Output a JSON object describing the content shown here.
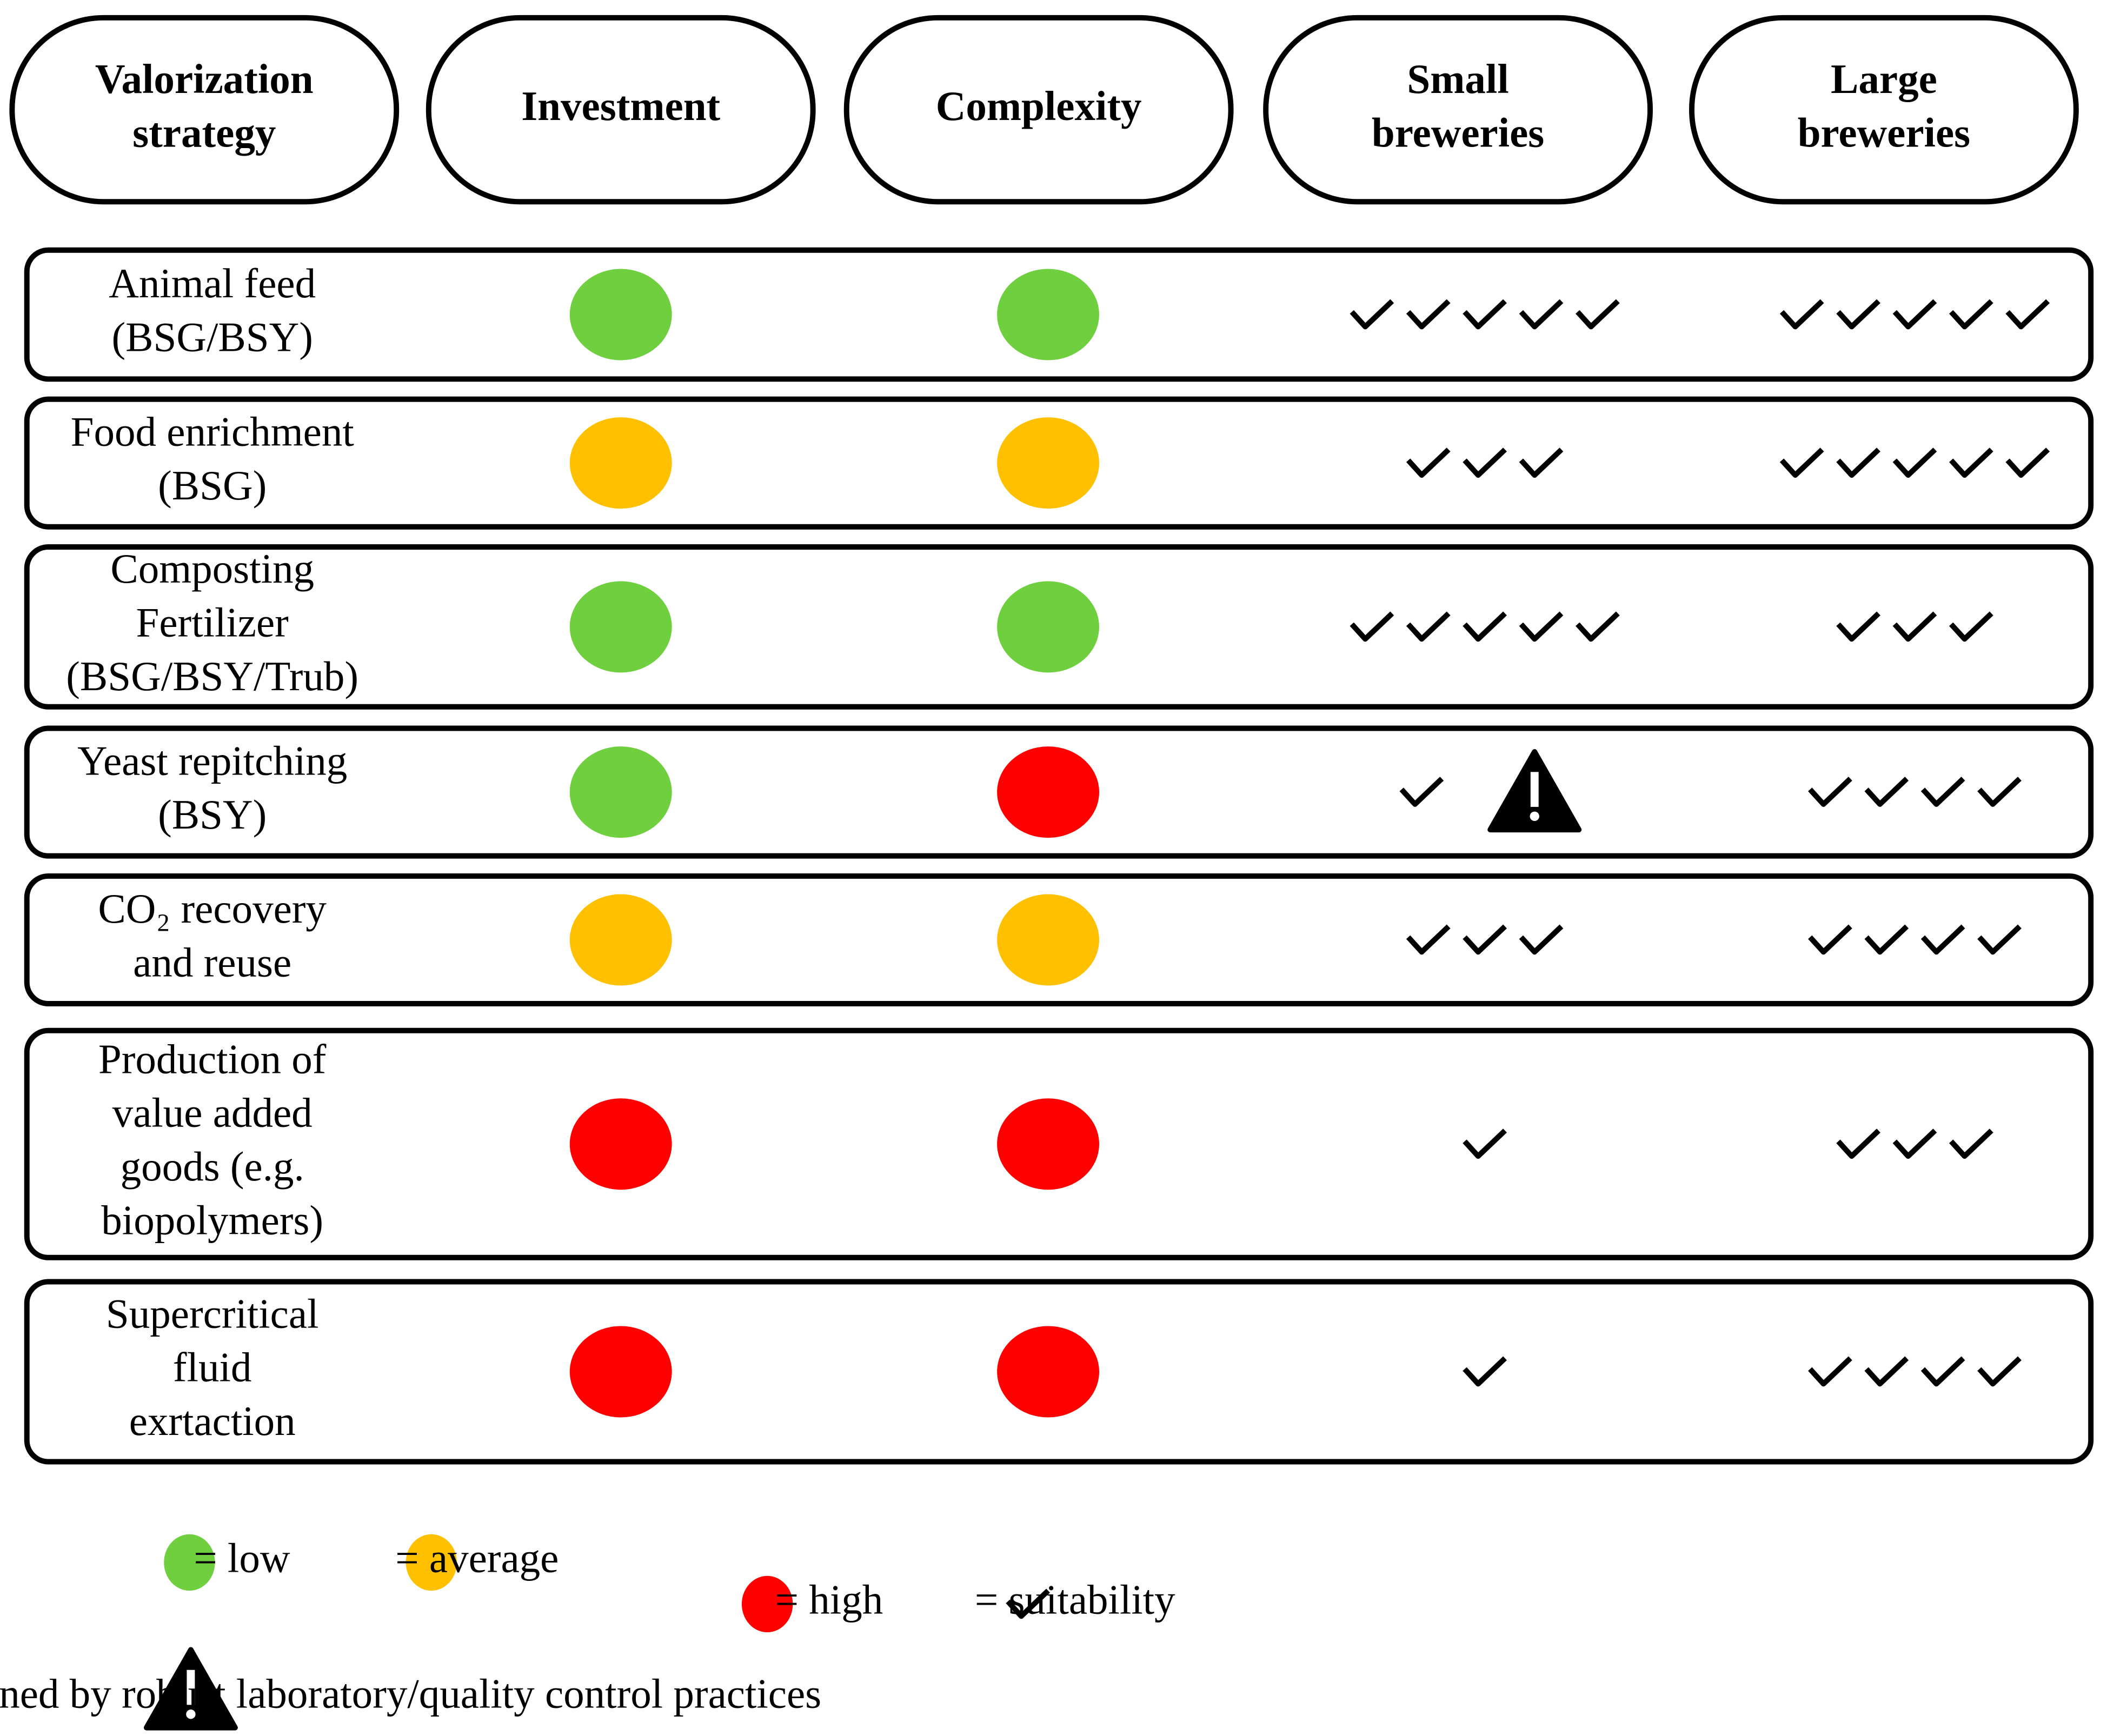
{
  "headers": [
    [
      "Valorization",
      "strategy"
    ],
    [
      "Investment"
    ],
    [
      "Complexity"
    ],
    [
      "Small",
      "breweries"
    ],
    [
      "Large",
      "breweries"
    ]
  ],
  "rows": [
    {
      "label": [
        "Animal feed",
        "(BSG/BSY)"
      ],
      "investment": "#6fcf3f",
      "complexity": "#6fcf3f",
      "small": 5,
      "large": 5
    },
    {
      "label": [
        "Food enrichment",
        "(BSG)"
      ],
      "investment": "#ffc000",
      "complexity": "#ffc000",
      "small": 3,
      "large": 5
    },
    {
      "label": [
        "Composting",
        "Fertilizer",
        "(BSG/BSY/Trub)"
      ],
      "investment": "#6fcf3f",
      "complexity": "#6fcf3f",
      "small": 5,
      "large": 3
    },
    {
      "label": [
        "Yeast repitching",
        "(BSY)"
      ],
      "investment": "#6fcf3f",
      "complexity": "#ff0000",
      "small": 1,
      "large": 4,
      "warning": true
    },
    {
      "label": [
        "CO₂ recovery",
        "and reuse"
      ],
      "investment": "#ffc000",
      "complexity": "#ffc000",
      "small": 3,
      "large": 4
    },
    {
      "label": [
        "Production of",
        "value added",
        "goods (e.g.",
        "biopolymers)"
      ],
      "investment": "#ff0000",
      "complexity": "#ff0000",
      "small": 1,
      "large": 3
    },
    {
      "label": [
        "Supercritical",
        "fluid",
        "exrtaction"
      ],
      "investment": "#ff0000",
      "complexity": "#ff0000",
      "small": 1,
      "large": 4
    }
  ],
  "legend": [
    {
      "color": "#6fcf3f",
      "label": "= low"
    },
    {
      "color": "#ffc000",
      "label": "= average"
    },
    {
      "color": "#ff0000",
      "label": "= high"
    }
  ],
  "suitability": "= suitability",
  "warning_note": "= feasibility conditioned by robust laboratory/quality control practices"
}
